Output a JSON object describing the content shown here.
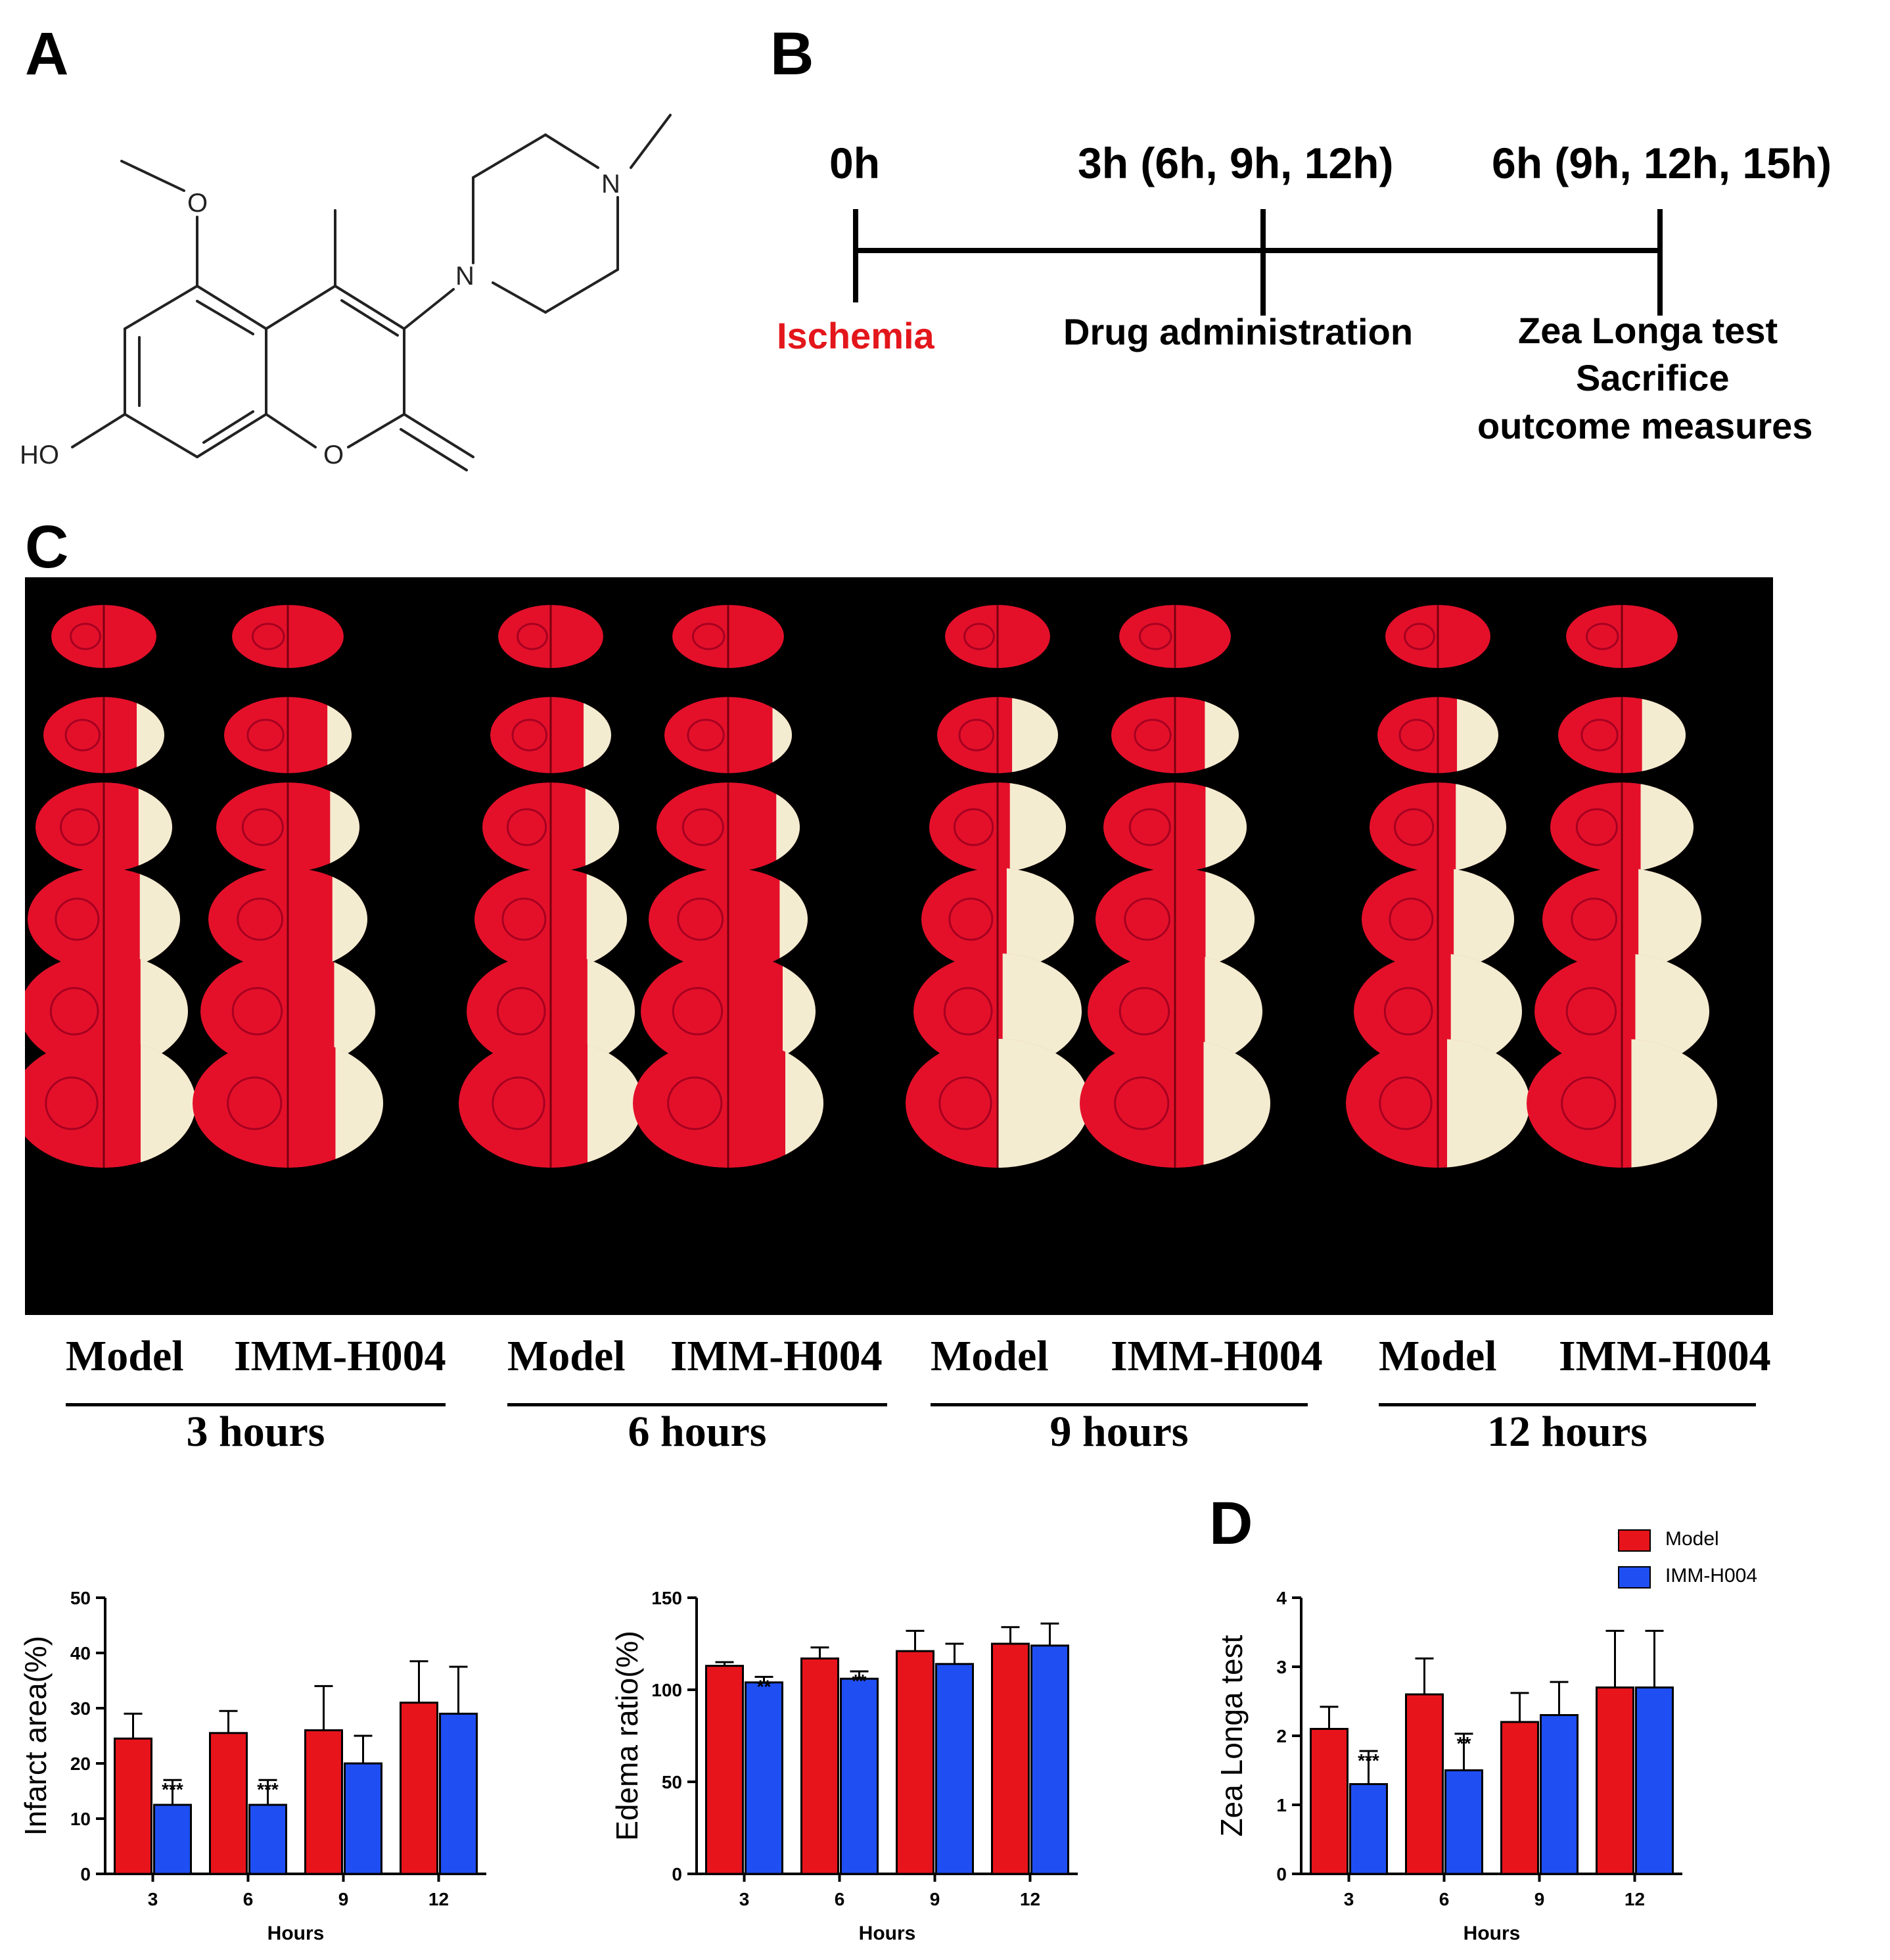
{
  "panels": {
    "a": "A",
    "b": "B",
    "c": "C",
    "d": "D"
  },
  "molecule": {
    "atom_o_methoxy": "O",
    "atom_n1": "N",
    "atom_n2": "N",
    "atom_o_ring": "O",
    "atom_ho": "HO"
  },
  "timeline": {
    "t0": "0h",
    "t1": "3h (6h, 9h, 12h)",
    "t2": "6h (9h, 12h, 15h)",
    "event0": "Ischemia",
    "event1": "Drug administration",
    "event2_lines": [
      "Zea Longa test",
      "Sacrifice",
      "outcome measures"
    ],
    "ischemia_color": "#e3161b"
  },
  "brain_photo": {
    "groups": [
      {
        "model": "Model",
        "treated": "IMM-H004",
        "time": "3 hours"
      },
      {
        "model": "Model",
        "treated": "IMM-H004",
        "time": "6 hours"
      },
      {
        "model": "Model",
        "treated": "IMM-H004",
        "time": "9 hours"
      },
      {
        "model": "Model",
        "treated": "IMM-H004",
        "time": "12 hours"
      }
    ]
  },
  "colors": {
    "model": "#e8141b",
    "treated": "#1f4ff2",
    "tissue": "#e4102a",
    "infarct": "#f3ecd0"
  },
  "legend": [
    "Model",
    "IMM-H004"
  ],
  "chart_data": [
    {
      "type": "bar",
      "categories": [
        "3",
        "6",
        "9",
        "12"
      ],
      "xlabel": "Hours",
      "ylabel": "Infarct area(%)",
      "ylim": [
        0,
        50
      ],
      "yticks": [
        "0",
        "10",
        "20",
        "30",
        "40",
        "50"
      ],
      "series": [
        {
          "name": "Model",
          "values": [
            24.5,
            25.5,
            26,
            31
          ],
          "errors": [
            4.5,
            4,
            8,
            7.5
          ]
        },
        {
          "name": "IMM-H004",
          "values": [
            12.5,
            12.5,
            20,
            29
          ],
          "errors": [
            4.5,
            4.5,
            5,
            8.5
          ]
        }
      ],
      "annotations": [
        "***",
        "***",
        "",
        ""
      ]
    },
    {
      "type": "bar",
      "categories": [
        "3",
        "6",
        "9",
        "12"
      ],
      "xlabel": "Hours",
      "ylabel": "Edema ratio(%)",
      "ylim": [
        0,
        150
      ],
      "yticks": [
        "0",
        "50",
        "100",
        "150"
      ],
      "series": [
        {
          "name": "Model",
          "values": [
            113,
            117,
            121,
            125
          ],
          "errors": [
            2,
            6,
            11,
            9
          ]
        },
        {
          "name": "IMM-H004",
          "values": [
            104,
            106,
            114,
            124
          ],
          "errors": [
            3,
            4,
            11,
            12
          ]
        }
      ],
      "annotations": [
        "**",
        "**",
        "",
        ""
      ]
    },
    {
      "type": "bar",
      "categories": [
        "3",
        "6",
        "9",
        "12"
      ],
      "xlabel": "Hours",
      "ylabel": "Zea Longa test",
      "ylim": [
        0,
        4
      ],
      "yticks": [
        "0",
        "1",
        "2",
        "3",
        "4"
      ],
      "series": [
        {
          "name": "Model",
          "values": [
            2.1,
            2.6,
            2.2,
            2.7
          ],
          "errors": [
            0.32,
            0.52,
            0.42,
            0.82
          ]
        },
        {
          "name": "IMM-H004",
          "values": [
            1.3,
            1.5,
            2.3,
            2.7
          ],
          "errors": [
            0.48,
            0.53,
            0.48,
            0.82
          ]
        }
      ],
      "annotations": [
        "***",
        "**",
        "",
        ""
      ]
    }
  ]
}
